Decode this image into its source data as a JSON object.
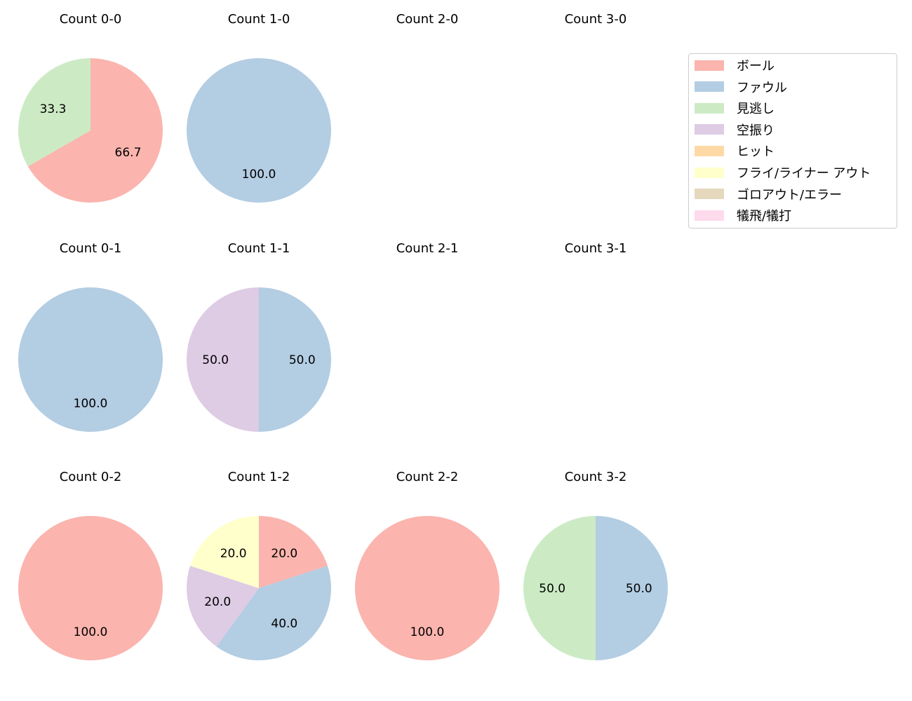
{
  "chart_data": {
    "type": "pie",
    "start_angle": 90,
    "direction": "clockwise",
    "legend": {
      "position": "upper right",
      "entries": [
        {
          "label": "ボール",
          "color": "#fbb4ae"
        },
        {
          "label": "ファウル",
          "color": "#b3cde3"
        },
        {
          "label": "見逃し",
          "color": "#ccebc5"
        },
        {
          "label": "空振り",
          "color": "#decbe4"
        },
        {
          "label": "ヒット",
          "color": "#fed9a6"
        },
        {
          "label": "フライ/ライナー アウト",
          "color": "#ffffcc"
        },
        {
          "label": "ゴロアウト/エラー",
          "color": "#e5d8bd"
        },
        {
          "label": "犠飛/犠打",
          "color": "#fddaec"
        }
      ]
    },
    "charts": [
      {
        "title": "Count 0-0",
        "slices": [
          {
            "label": "ボール",
            "value": 66.7
          },
          {
            "label": "見逃し",
            "value": 33.3
          }
        ]
      },
      {
        "title": "Count 1-0",
        "slices": [
          {
            "label": "ファウル",
            "value": 100.0
          }
        ]
      },
      {
        "title": "Count 2-0",
        "slices": []
      },
      {
        "title": "Count 3-0",
        "slices": []
      },
      {
        "title": "Count 0-1",
        "slices": [
          {
            "label": "ファウル",
            "value": 100.0
          }
        ]
      },
      {
        "title": "Count 1-1",
        "slices": [
          {
            "label": "ファウル",
            "value": 50.0
          },
          {
            "label": "空振り",
            "value": 50.0
          }
        ]
      },
      {
        "title": "Count 2-1",
        "slices": []
      },
      {
        "title": "Count 3-1",
        "slices": []
      },
      {
        "title": "Count 0-2",
        "slices": [
          {
            "label": "ボール",
            "value": 100.0
          }
        ]
      },
      {
        "title": "Count 1-2",
        "slices": [
          {
            "label": "ボール",
            "value": 20.0
          },
          {
            "label": "ファウル",
            "value": 40.0
          },
          {
            "label": "空振り",
            "value": 20.0
          },
          {
            "label": "フライ/ライナー アウト",
            "value": 20.0
          }
        ]
      },
      {
        "title": "Count 2-2",
        "slices": [
          {
            "label": "ボール",
            "value": 100.0
          }
        ]
      },
      {
        "title": "Count 3-2",
        "slices": [
          {
            "label": "ファウル",
            "value": 50.0
          },
          {
            "label": "見逃し",
            "value": 50.0
          }
        ]
      }
    ]
  }
}
